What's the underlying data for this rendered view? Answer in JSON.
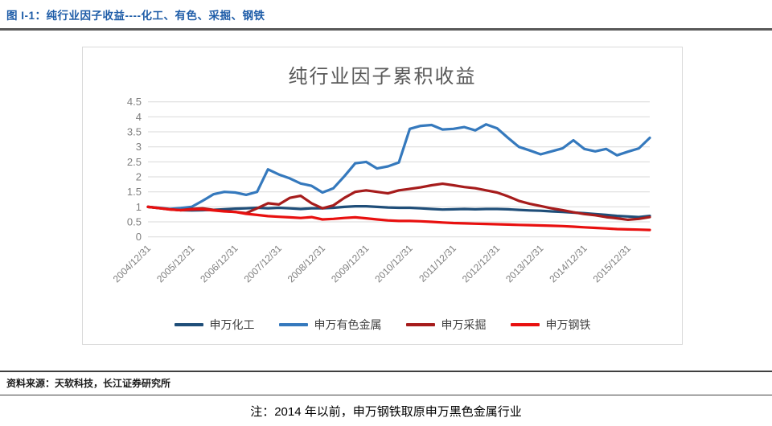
{
  "page": {
    "figure_label": "图 I-1：纯行业因子收益----化工、有色、采掘、钢铁",
    "source": "资料来源：天软科技，长江证券研究所",
    "note": "注：2014 年以前，申万钢铁取原申万黑色金属行业"
  },
  "colors": {
    "header_text": "#1F5DA8",
    "header_rule": "#595959",
    "divider": "#404040",
    "chart_border": "#D9D9D9",
    "grid": "#D9D9D9",
    "tick_text": "#7F7F7F",
    "title_text": "#595959"
  },
  "chart_data": {
    "type": "line",
    "title": "纯行业因子累积收益",
    "xlabel": "",
    "ylabel": "",
    "ylim": [
      0,
      4.5
    ],
    "y_ticks": [
      0,
      0.5,
      1,
      1.5,
      2,
      2.5,
      3,
      3.5,
      4,
      4.5
    ],
    "grid": true,
    "legend_position": "bottom",
    "x_tick_labels": [
      "2004/12/31",
      "2005/12/31",
      "2006/12/31",
      "2007/12/31",
      "2008/12/31",
      "2009/12/31",
      "2010/12/31",
      "2011/12/31",
      "2012/12/31",
      "2013/12/31",
      "2014/12/31",
      "2015/12/31"
    ],
    "x": [
      "2004/12",
      "2005/03",
      "2005/06",
      "2005/09",
      "2005/12",
      "2006/03",
      "2006/06",
      "2006/09",
      "2006/12",
      "2007/03",
      "2007/06",
      "2007/09",
      "2007/12",
      "2008/03",
      "2008/06",
      "2008/09",
      "2008/12",
      "2009/03",
      "2009/06",
      "2009/09",
      "2009/12",
      "2010/03",
      "2010/06",
      "2010/09",
      "2010/12",
      "2011/03",
      "2011/06",
      "2011/09",
      "2011/12",
      "2012/03",
      "2012/06",
      "2012/09",
      "2012/12",
      "2013/03",
      "2013/06",
      "2013/09",
      "2013/12",
      "2014/03",
      "2014/06",
      "2014/09",
      "2014/12",
      "2015/03",
      "2015/06",
      "2015/09",
      "2015/12",
      "2016/03",
      "2016/06"
    ],
    "series": [
      {
        "name": "申万化工",
        "color": "#1F4E79",
        "values": [
          1.0,
          0.96,
          0.92,
          0.89,
          0.88,
          0.89,
          0.9,
          0.92,
          0.94,
          0.95,
          0.97,
          0.95,
          0.97,
          0.95,
          0.93,
          0.95,
          0.95,
          0.97,
          1.0,
          1.02,
          1.02,
          1.0,
          0.98,
          0.97,
          0.97,
          0.95,
          0.93,
          0.91,
          0.92,
          0.93,
          0.92,
          0.93,
          0.93,
          0.92,
          0.9,
          0.88,
          0.87,
          0.85,
          0.83,
          0.81,
          0.79,
          0.76,
          0.73,
          0.7,
          0.68,
          0.66,
          0.7
        ]
      },
      {
        "name": "申万有色金属",
        "color": "#3579BD",
        "values": [
          1.0,
          0.97,
          0.93,
          0.96,
          1.0,
          1.2,
          1.42,
          1.5,
          1.48,
          1.4,
          1.5,
          2.25,
          2.08,
          1.95,
          1.78,
          1.7,
          1.48,
          1.62,
          2.02,
          2.45,
          2.5,
          2.28,
          2.35,
          2.48,
          3.6,
          3.7,
          3.73,
          3.58,
          3.6,
          3.66,
          3.55,
          3.75,
          3.62,
          3.3,
          3.0,
          2.88,
          2.75,
          2.85,
          2.95,
          3.22,
          2.93,
          2.85,
          2.93,
          2.72,
          2.84,
          2.95,
          3.3
        ]
      },
      {
        "name": "申万采掘",
        "color": "#A61C1C",
        "values": [
          1.0,
          0.96,
          0.92,
          0.89,
          0.93,
          0.95,
          0.9,
          0.86,
          0.83,
          0.79,
          0.95,
          1.12,
          1.08,
          1.3,
          1.37,
          1.12,
          0.95,
          1.05,
          1.3,
          1.5,
          1.55,
          1.5,
          1.45,
          1.55,
          1.6,
          1.65,
          1.72,
          1.77,
          1.72,
          1.66,
          1.62,
          1.55,
          1.48,
          1.35,
          1.2,
          1.1,
          1.03,
          0.95,
          0.89,
          0.82,
          0.76,
          0.72,
          0.66,
          0.62,
          0.57,
          0.6,
          0.66
        ]
      },
      {
        "name": "申万钢铁",
        "color": "#E8100F",
        "values": [
          1.0,
          0.96,
          0.91,
          0.89,
          0.91,
          0.92,
          0.88,
          0.85,
          0.83,
          0.77,
          0.73,
          0.69,
          0.67,
          0.65,
          0.63,
          0.66,
          0.58,
          0.6,
          0.63,
          0.65,
          0.62,
          0.58,
          0.55,
          0.53,
          0.53,
          0.52,
          0.5,
          0.48,
          0.46,
          0.45,
          0.44,
          0.43,
          0.42,
          0.41,
          0.4,
          0.39,
          0.38,
          0.37,
          0.36,
          0.34,
          0.32,
          0.3,
          0.28,
          0.26,
          0.25,
          0.24,
          0.23
        ]
      }
    ]
  }
}
